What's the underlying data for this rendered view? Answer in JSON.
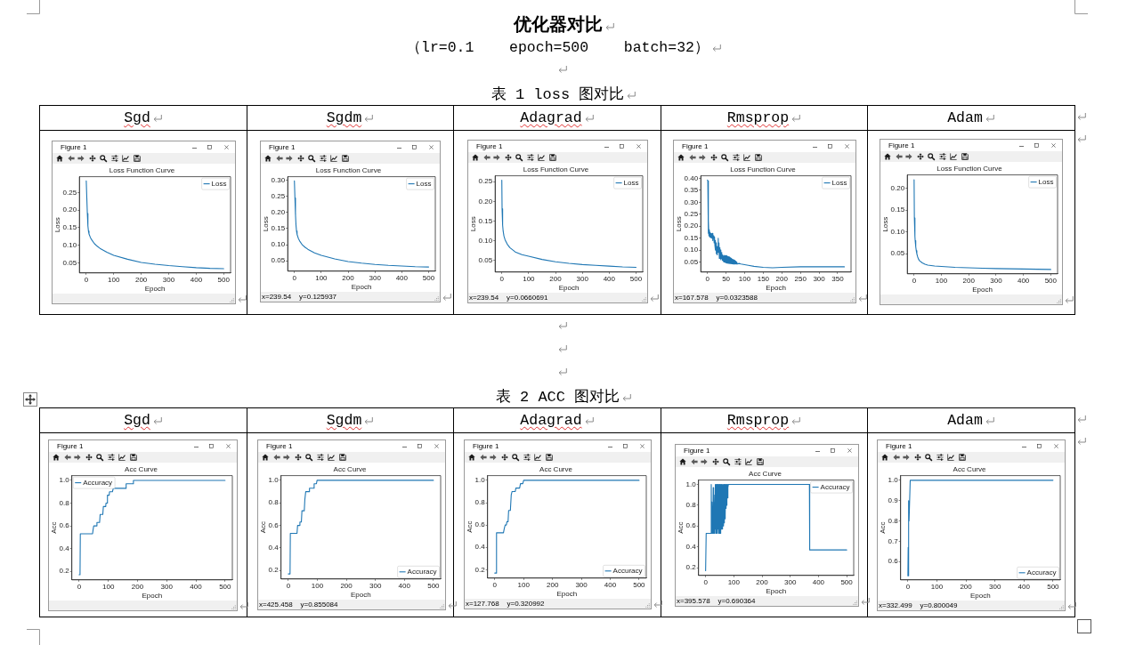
{
  "chart_data": [
    {
      "type": "other",
      "title": "优化器对比",
      "subtitle": "（lr=0.1    epoch=500    batch=32）"
    },
    {
      "type": "other",
      "title": "表 1 loss 图对比"
    },
    {
      "type": "line",
      "title": "Loss Function Curve",
      "xlabel": "Epoch",
      "ylabel": "Loss",
      "annotations": [
        "Sgd",
        "Figure 1"
      ],
      "xlim": [
        -25,
        525
      ],
      "xticks": [
        0,
        100,
        200,
        300,
        400,
        500
      ],
      "ylim": [
        0.021,
        0.295
      ],
      "yticks": [
        0.05,
        {
          "value": 0.1,
          "label": "0.10"
        },
        0.15,
        {
          "value": 0.2,
          "label": "0.20"
        },
        0.25
      ],
      "legend": "top right",
      "series": [
        {
          "name": "Loss",
          "color": "#1f77b4",
          "x": [
            0,
            2,
            4,
            6,
            8,
            10,
            15,
            20,
            30,
            40,
            50,
            75,
            100,
            150,
            200,
            250,
            300,
            350,
            400,
            450,
            500
          ],
          "values": [
            0.283,
            0.235,
            0.19,
            0.155,
            0.14,
            0.132,
            0.122,
            0.115,
            0.104,
            0.097,
            0.091,
            0.08,
            0.071,
            0.06,
            0.051,
            0.046,
            0.042,
            0.039,
            0.036,
            0.034,
            0.033
          ]
        }
      ]
    },
    {
      "type": "line",
      "title": "Loss Function Curve",
      "xlabel": "Epoch",
      "ylabel": "Loss",
      "annotations": [
        "Sgdm",
        "Figure 1",
        "x=239.54    y=0.125937"
      ],
      "xlim": [
        -25,
        525
      ],
      "xticks": [
        0,
        100,
        200,
        300,
        400,
        500
      ],
      "ylim": [
        0.018,
        0.311
      ],
      "yticks": [
        0.05,
        {
          "value": 0.1,
          "label": "0.10"
        },
        0.15,
        {
          "value": 0.2,
          "label": "0.20"
        },
        0.25,
        {
          "value": 0.3,
          "label": "0.30"
        }
      ],
      "legend": "top right",
      "series": [
        {
          "name": "Loss",
          "color": "#1f77b4",
          "x": [
            0,
            2,
            4,
            6,
            8,
            10,
            15,
            20,
            30,
            40,
            50,
            75,
            100,
            150,
            200,
            250,
            300,
            350,
            400,
            450,
            500
          ],
          "values": [
            0.298,
            0.245,
            0.195,
            0.16,
            0.142,
            0.132,
            0.119,
            0.111,
            0.099,
            0.092,
            0.086,
            0.075,
            0.067,
            0.056,
            0.048,
            0.043,
            0.039,
            0.036,
            0.034,
            0.032,
            0.031
          ]
        }
      ]
    },
    {
      "type": "line",
      "title": "Loss Function Curve",
      "xlabel": "Epoch",
      "ylabel": "Loss",
      "annotations": [
        "Adagrad",
        "Figure 1",
        "x=239.54    y=0.0660691"
      ],
      "xlim": [
        -25,
        525
      ],
      "xticks": [
        0,
        100,
        200,
        300,
        400,
        500
      ],
      "ylim": [
        0.021,
        0.265
      ],
      "yticks": [
        0.05,
        {
          "value": 0.1,
          "label": "0.10"
        },
        0.15,
        {
          "value": 0.2,
          "label": "0.20"
        },
        0.25
      ],
      "legend": "top right",
      "series": [
        {
          "name": "Loss",
          "color": "#1f77b4",
          "x": [
            0,
            1,
            3,
            5,
            8,
            12,
            20,
            30,
            50,
            75,
            100,
            150,
            200,
            250,
            300,
            350,
            400,
            450,
            500
          ],
          "values": [
            0.254,
            0.181,
            0.14,
            0.125,
            0.112,
            0.103,
            0.092,
            0.083,
            0.072,
            0.065,
            0.061,
            0.053,
            0.047,
            0.043,
            0.04,
            0.038,
            0.036,
            0.034,
            0.033
          ]
        }
      ]
    },
    {
      "type": "line",
      "title": "Loss Function Curve",
      "xlabel": "Epoch",
      "ylabel": "Loss",
      "annotations": [
        "Rmsprop",
        "Figure 1",
        "x=167.578    y=0.0323588"
      ],
      "xlim": [
        -18,
        386
      ],
      "xticks": [
        0,
        50,
        100,
        150,
        200,
        250,
        300,
        350
      ],
      "ylim": [
        0.008,
        0.411
      ],
      "yticks": [
        0.05,
        {
          "value": 0.1,
          "label": "0.10"
        },
        0.15,
        {
          "value": 0.2,
          "label": "0.20"
        },
        0.25,
        {
          "value": 0.3,
          "label": "0.30"
        },
        0.35,
        {
          "value": 0.4,
          "label": "0.40"
        }
      ],
      "legend": "top right",
      "series": [
        {
          "name": "Loss",
          "color": "#1f77b4",
          "x": [
            0,
            1,
            2,
            3,
            4,
            5,
            6,
            7,
            8,
            9,
            10,
            11,
            12,
            13,
            14,
            15,
            16,
            17,
            18,
            19,
            20,
            21,
            22,
            23,
            24,
            25,
            26,
            27,
            28,
            29,
            30,
            31,
            32,
            33,
            34,
            35,
            36,
            37,
            38,
            39,
            40,
            41,
            42,
            43,
            44,
            45,
            46,
            47,
            48,
            49,
            50,
            51,
            52,
            53,
            54,
            55,
            56,
            57,
            58,
            59,
            60,
            61,
            62,
            63,
            64,
            65,
            66,
            67,
            68,
            69,
            70,
            71,
            72,
            73,
            74,
            75,
            76,
            77,
            78,
            79,
            80,
            85,
            90,
            100,
            110,
            125,
            150,
            175,
            200,
            250,
            300,
            368
          ],
          "values": [
            0.393,
            0.39,
            0.17,
            0.225,
            0.16,
            0.185,
            0.155,
            0.175,
            0.158,
            0.17,
            0.152,
            0.168,
            0.15,
            0.17,
            0.14,
            0.165,
            0.15,
            0.16,
            0.13,
            0.155,
            0.12,
            0.14,
            0.1,
            0.13,
            0.085,
            0.115,
            0.08,
            0.11,
            0.09,
            0.15,
            0.095,
            0.13,
            0.065,
            0.11,
            0.07,
            0.1,
            0.06,
            0.09,
            0.065,
            0.085,
            0.058,
            0.08,
            0.055,
            0.075,
            0.05,
            0.078,
            0.05,
            0.076,
            0.048,
            0.077,
            0.047,
            0.076,
            0.046,
            0.075,
            0.046,
            0.073,
            0.045,
            0.072,
            0.045,
            0.07,
            0.044,
            0.068,
            0.044,
            0.066,
            0.043,
            0.064,
            0.043,
            0.062,
            0.043,
            0.06,
            0.042,
            0.058,
            0.042,
            0.056,
            0.042,
            0.054,
            0.042,
            0.052,
            0.042,
            0.05,
            0.042,
            0.044,
            0.042,
            0.039,
            0.036,
            0.032,
            0.028,
            0.026,
            0.028,
            0.03,
            0.03,
            0.03
          ]
        }
      ]
    },
    {
      "type": "line",
      "title": "Loss Function Curve",
      "xlabel": "Epoch",
      "ylabel": "Loss",
      "annotations": [
        "Adam",
        "Figure 1"
      ],
      "xlim": [
        -25,
        525
      ],
      "xticks": [
        0,
        100,
        200,
        300,
        400,
        500
      ],
      "ylim": [
        0.004,
        0.231
      ],
      "yticks": [
        0.05,
        {
          "value": 0.1,
          "label": "0.10"
        },
        0.15,
        {
          "value": 0.2,
          "label": "0.20"
        }
      ],
      "legend": "top right",
      "series": [
        {
          "name": "Loss",
          "color": "#1f77b4",
          "x": [
            0,
            1,
            3,
            4,
            6,
            8,
            10,
            13,
            16,
            20,
            30,
            40,
            50,
            75,
            100,
            150,
            200,
            250,
            300,
            400,
            500
          ],
          "values": [
            0.22,
            0.132,
            0.09,
            0.08,
            0.066,
            0.057,
            0.05,
            0.043,
            0.038,
            0.034,
            0.029,
            0.026,
            0.024,
            0.022,
            0.021,
            0.019,
            0.018,
            0.017,
            0.016,
            0.015,
            0.014
          ]
        }
      ]
    },
    {
      "type": "other",
      "title": "表 2 ACC 图对比"
    },
    {
      "type": "line",
      "title": "Acc Curve",
      "xlabel": "Epoch",
      "ylabel": "Acc",
      "annotations": [
        "Sgd",
        "Figure 1"
      ],
      "xlim": [
        -25,
        525
      ],
      "xticks": [
        0,
        100,
        200,
        300,
        400,
        500
      ],
      "ylim": [
        0.125,
        1.042
      ],
      "yticks": [
        0.2,
        0.4,
        0.6,
        0.8,
        {
          "value": 1,
          "label": "1.0"
        }
      ],
      "legend": "top left",
      "series": [
        {
          "name": "Accuracy",
          "color": "#1f77b4",
          "x": [
            0,
            3,
            4,
            46,
            48,
            50,
            60,
            61,
            70,
            72,
            81,
            83,
            91,
            92,
            96,
            97,
            103,
            104,
            114,
            117,
            160,
            161,
            184,
            186,
            500
          ],
          "values": [
            0.17,
            0.17,
            0.53,
            0.53,
            0.57,
            0.6,
            0.6,
            0.63,
            0.63,
            0.7,
            0.7,
            0.77,
            0.77,
            0.8,
            0.8,
            0.87,
            0.87,
            0.9,
            0.9,
            0.93,
            0.93,
            0.97,
            0.97,
            1,
            1
          ]
        }
      ]
    },
    {
      "type": "line",
      "title": "Acc Curve",
      "xlabel": "Epoch",
      "ylabel": "Acc",
      "annotations": [
        "Sgdm",
        "Figure 1",
        "x=425.458    y=0.855084"
      ],
      "xlim": [
        -25,
        525
      ],
      "xticks": [
        0,
        100,
        200,
        300,
        400,
        500
      ],
      "ylim": [
        0.125,
        1.042
      ],
      "yticks": [
        0.2,
        0.4,
        0.6,
        0.8,
        {
          "value": 1,
          "label": "1.0"
        }
      ],
      "legend": "bottom right",
      "series": [
        {
          "name": "Accuracy",
          "color": "#1f77b4",
          "x": [
            0,
            6,
            7,
            30,
            32,
            38,
            40,
            45,
            47,
            55,
            57,
            60,
            72,
            73,
            88,
            89,
            97,
            99,
            500
          ],
          "values": [
            0.17,
            0.17,
            0.53,
            0.53,
            0.6,
            0.6,
            0.63,
            0.63,
            0.73,
            0.73,
            0.83,
            0.9,
            0.9,
            0.93,
            0.93,
            0.97,
            0.97,
            1,
            1
          ]
        }
      ]
    },
    {
      "type": "line",
      "title": "Acc Curve",
      "xlabel": "Epoch",
      "ylabel": "Acc",
      "annotations": [
        "Adagrad",
        "Figure 1",
        "x=127.768    y=0.320992"
      ],
      "xlim": [
        -25,
        525
      ],
      "xticks": [
        0,
        100,
        200,
        300,
        400,
        500
      ],
      "ylim": [
        0.125,
        1.042
      ],
      "yticks": [
        0.2,
        0.4,
        0.6,
        0.8,
        {
          "value": 1,
          "label": "1.0"
        }
      ],
      "legend": "bottom right",
      "series": [
        {
          "name": "Accuracy",
          "color": "#1f77b4",
          "x": [
            0,
            5,
            6,
            30,
            33,
            36,
            40,
            42,
            46,
            48,
            54,
            57,
            60,
            71,
            73,
            86,
            89,
            97,
            100,
            500
          ],
          "values": [
            0.17,
            0.17,
            0.53,
            0.53,
            0.57,
            0.6,
            0.6,
            0.63,
            0.63,
            0.73,
            0.73,
            0.87,
            0.9,
            0.9,
            0.93,
            0.93,
            0.97,
            0.97,
            1,
            1
          ]
        }
      ]
    },
    {
      "type": "line",
      "title": "Acc Curve",
      "xlabel": "Epoch",
      "ylabel": "Acc",
      "annotations": [
        "Rmsprop",
        "Figure 1",
        "x=395.578    y=0.690364"
      ],
      "xlim": [
        -25,
        525
      ],
      "xticks": [
        0,
        100,
        200,
        300,
        400,
        500
      ],
      "ylim": [
        0.125,
        1.042
      ],
      "yticks": [
        0.2,
        0.4,
        0.6,
        0.8,
        {
          "value": 1,
          "label": "1.0"
        }
      ],
      "legend": "top right",
      "series": [
        {
          "name": "Accuracy",
          "color": "#1f77b4",
          "x": [
            0,
            1,
            2,
            19,
            20,
            21,
            22,
            23,
            24,
            25,
            26,
            27,
            28,
            29,
            30,
            31,
            32,
            33,
            34,
            35,
            36,
            37,
            38,
            39,
            40,
            41,
            42,
            43,
            44,
            45,
            46,
            47,
            48,
            49,
            50,
            51,
            52,
            53,
            54,
            55,
            56,
            57,
            58,
            59,
            60,
            61,
            62,
            63,
            64,
            65,
            66,
            67,
            68,
            69,
            70,
            71,
            72,
            73,
            74,
            75,
            76,
            77,
            78,
            79,
            80,
            81,
            368,
            369,
            500
          ],
          "values": [
            0.17,
            0.17,
            0.53,
            0.53,
            1,
            0.53,
            0.53,
            0.83,
            0.53,
            0.53,
            0.6,
            0.97,
            0.53,
            0.97,
            0.6,
            0.53,
            0.6,
            0.9,
            0.57,
            1,
            0.53,
            1,
            0.57,
            1,
            0.53,
            1,
            0.53,
            1,
            0.57,
            1,
            0.53,
            1,
            0.57,
            1,
            0.53,
            1,
            0.57,
            1,
            0.53,
            1,
            0.57,
            1,
            0.6,
            1,
            0.57,
            1,
            0.6,
            1,
            0.6,
            1,
            0.63,
            1,
            0.67,
            1,
            0.7,
            1,
            0.77,
            1,
            0.8,
            1,
            0.87,
            1,
            0.87,
            1,
            0.97,
            1,
            1,
            0.37,
            0.37
          ]
        }
      ]
    },
    {
      "type": "line",
      "title": "Acc Curve",
      "xlabel": "Epoch",
      "ylabel": "Acc",
      "annotations": [
        "Adam",
        "Figure 1",
        "x=332.499    y=0.800049"
      ],
      "xlim": [
        -25,
        525
      ],
      "xticks": [
        0,
        100,
        200,
        300,
        400,
        500
      ],
      "ylim": [
        0.51,
        1.023
      ],
      "yticks": [
        0.6,
        0.7,
        0.8,
        0.9,
        {
          "value": 1,
          "label": "1.0"
        }
      ],
      "legend": "bottom right",
      "series": [
        {
          "name": "Accuracy",
          "color": "#1f77b4",
          "x": [
            0,
            1,
            2,
            3,
            4,
            8,
            500
          ],
          "values": [
            0.53,
            0.67,
            0.53,
            0.9,
            0.8,
            1,
            1
          ]
        }
      ]
    }
  ]
}
